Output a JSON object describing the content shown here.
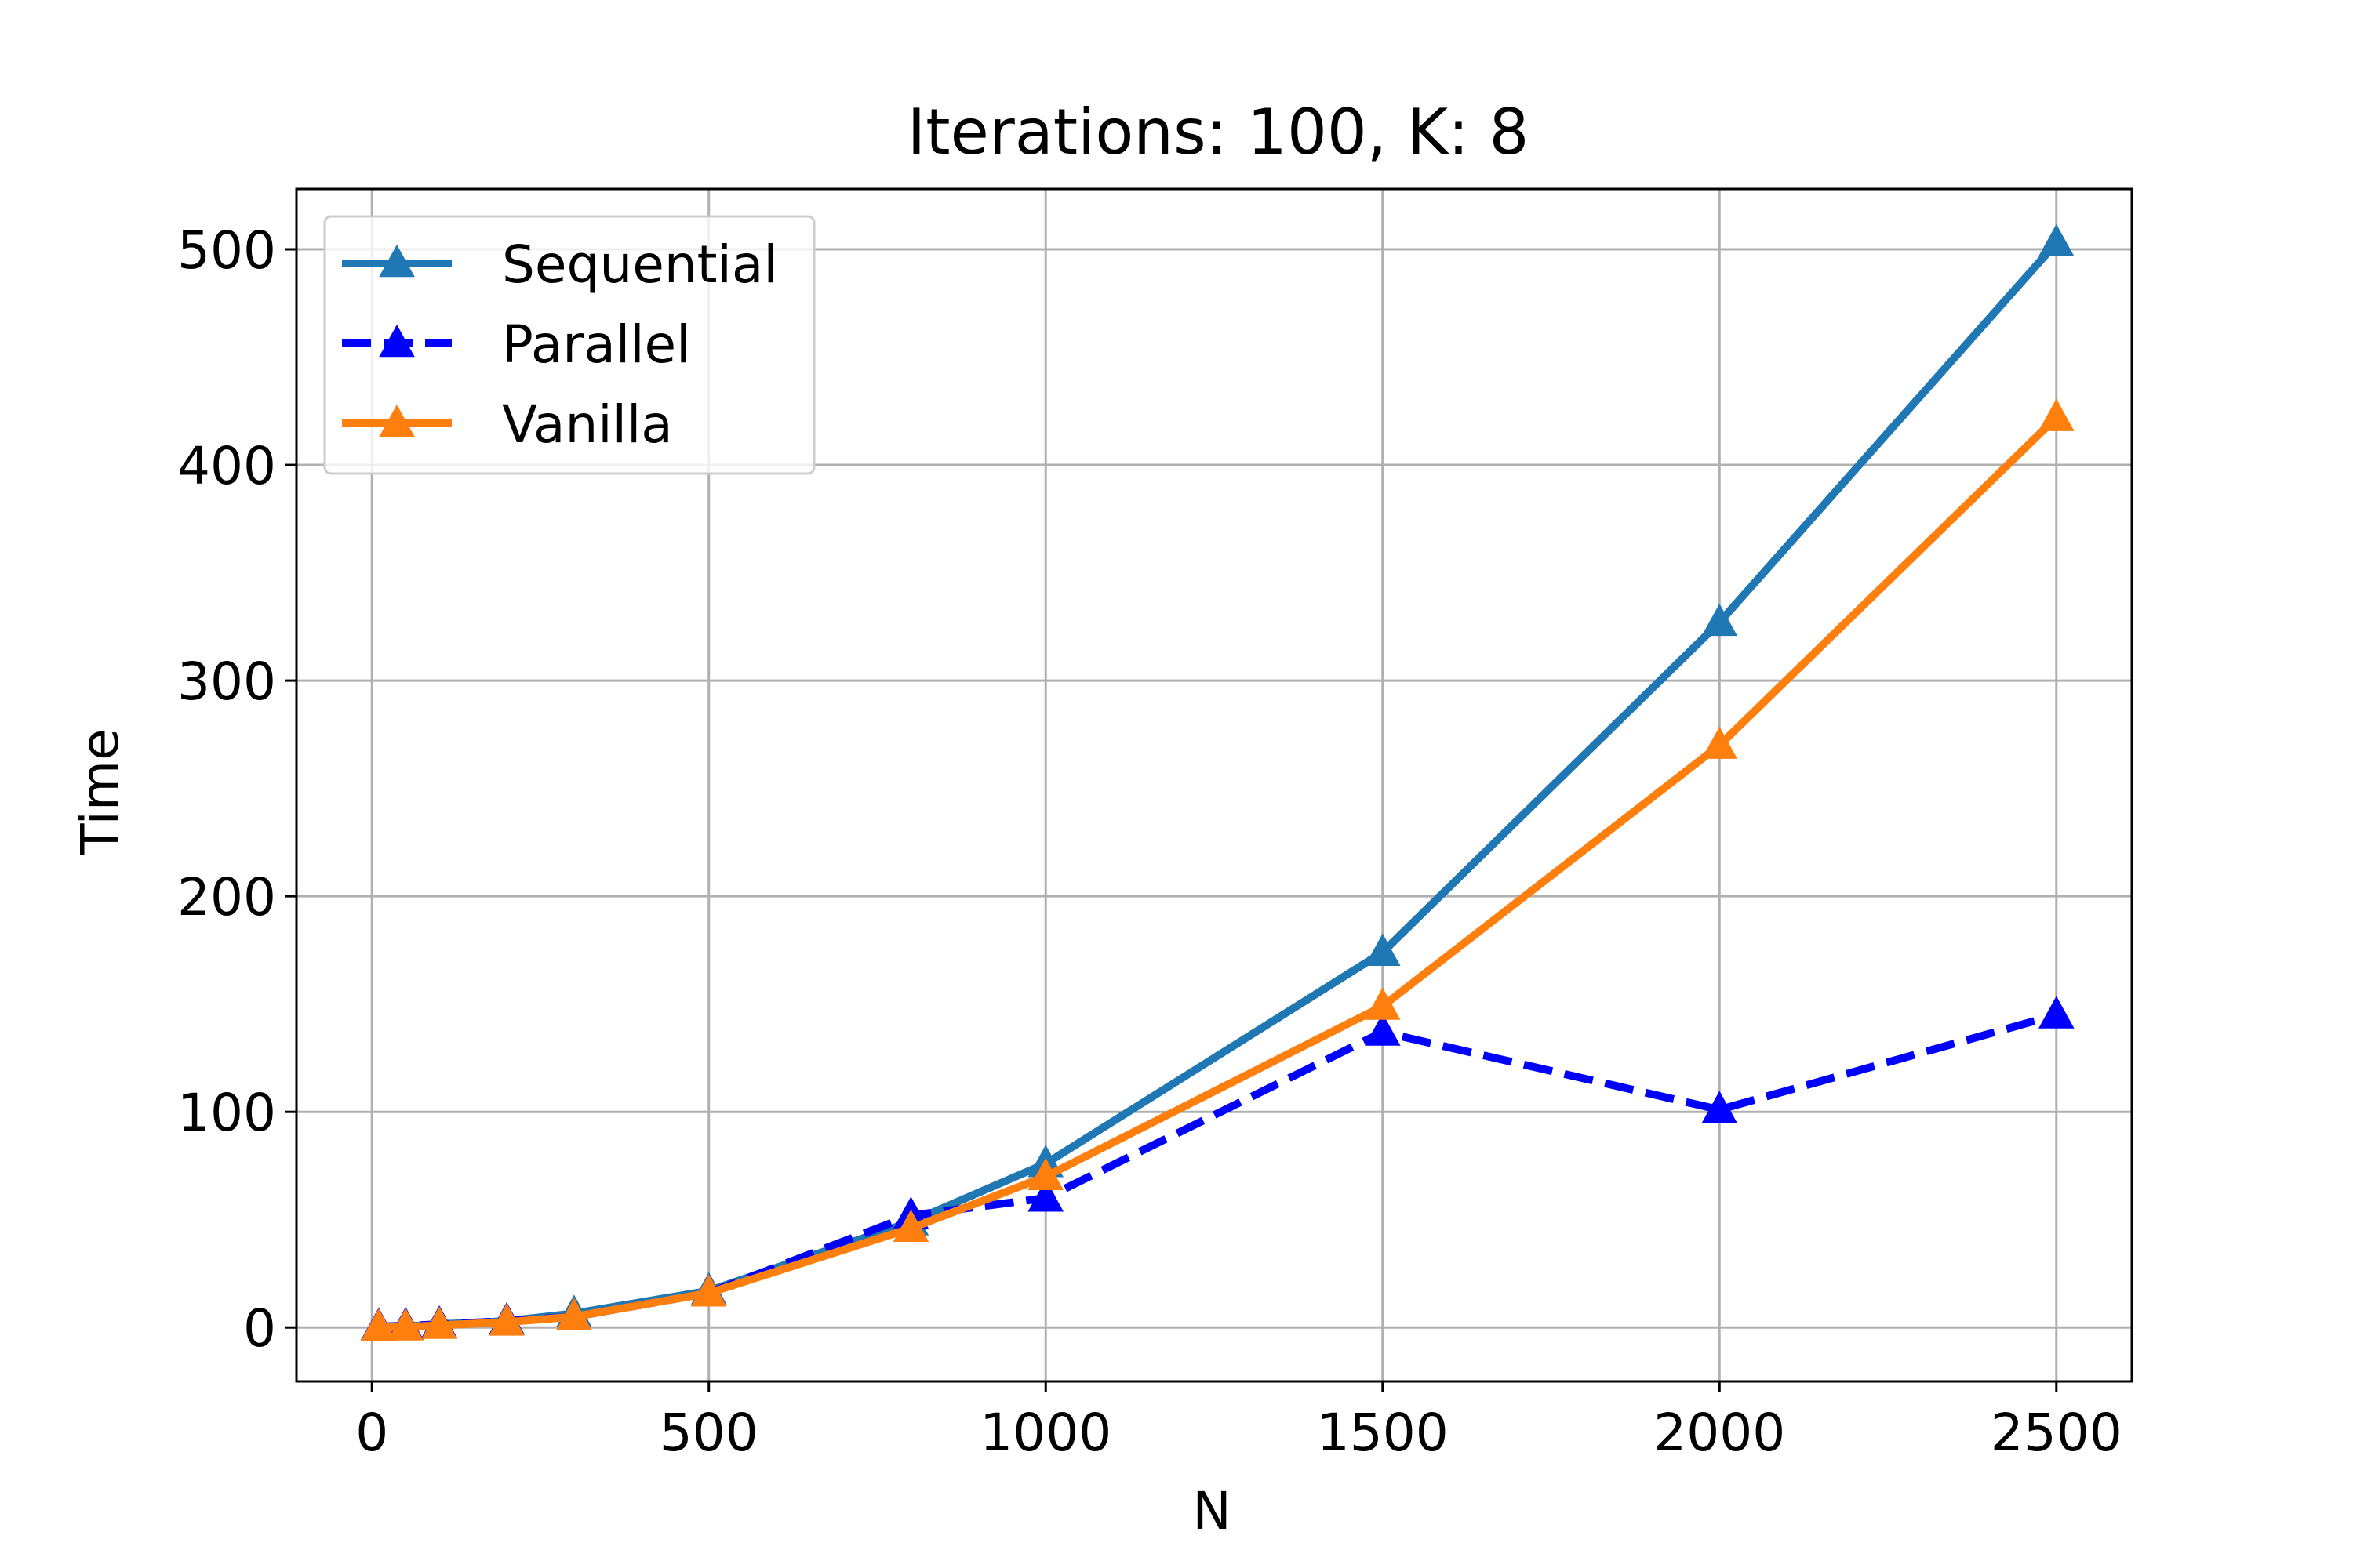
{
  "chart_data": {
    "type": "line",
    "title": "Iterations: 100, K: 8",
    "xlabel": "N",
    "ylabel": "Time",
    "xlim": [
      -112,
      2612
    ],
    "ylim": [
      -25,
      528
    ],
    "xticks": [
      0,
      500,
      1000,
      1500,
      2000,
      2500
    ],
    "yticks": [
      0,
      100,
      200,
      300,
      400,
      500
    ],
    "grid": true,
    "legend_position": "upper-left",
    "series": [
      {
        "name": "Sequential",
        "color": "#1f77b4",
        "dash": "solid",
        "marker": "triangle",
        "x": [
          10,
          50,
          100,
          200,
          300,
          500,
          800,
          1000,
          1500,
          2000,
          2500
        ],
        "y": [
          0.1,
          0.5,
          1.5,
          3,
          6.5,
          17,
          49,
          76,
          174,
          327,
          503
        ]
      },
      {
        "name": "Parallel",
        "color": "#0000ff",
        "dash": "dashed",
        "marker": "triangle",
        "x": [
          10,
          50,
          100,
          200,
          300,
          500,
          800,
          1000,
          1500,
          2000,
          2500
        ],
        "y": [
          0.5,
          0.8,
          1.5,
          3,
          5,
          16,
          52,
          60,
          137,
          101,
          145
        ]
      },
      {
        "name": "Vanilla",
        "color": "#ff7f0e",
        "dash": "solid",
        "marker": "triangle",
        "x": [
          10,
          50,
          100,
          200,
          300,
          500,
          800,
          1000,
          1500,
          2000,
          2500
        ],
        "y": [
          0.1,
          0.3,
          1,
          2.5,
          5,
          16,
          46,
          70,
          149,
          270,
          422
        ]
      }
    ]
  }
}
